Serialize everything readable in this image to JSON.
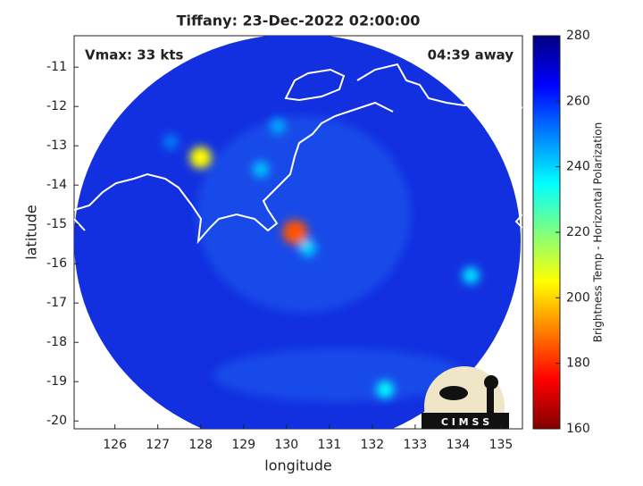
{
  "chart_data": {
    "type": "swath-map",
    "title": "Tiffany: 23-Dec-2022 02:00:00",
    "annotations": [
      "Vmax: 33 kts",
      "04:39 away"
    ],
    "x_label": "longitude",
    "y_label": "latitude",
    "xlim": [
      125.05,
      135.5
    ],
    "xticks": [
      126,
      127,
      128,
      129,
      130,
      131,
      132,
      133,
      134,
      135
    ],
    "ylim": [
      -20.2,
      -10.2
    ],
    "yticks": [
      -11,
      -12,
      -13,
      -14,
      -15,
      -16,
      -17,
      -18,
      -19,
      -20
    ],
    "colorbar_label": "Brightness Temp - Horizontal Polarization",
    "clim": [
      160,
      280
    ],
    "cticks": [
      160,
      180,
      200,
      220,
      240,
      260,
      280
    ],
    "colormap": "jet-reversed",
    "features": [
      {
        "x": 130.2,
        "y": -15.2,
        "value": 185
      },
      {
        "x": 128.0,
        "y": -13.3,
        "value": 205
      },
      {
        "x": 130.5,
        "y": -15.6,
        "value": 240
      },
      {
        "x": 129.8,
        "y": -12.5,
        "value": 245
      },
      {
        "x": 132.3,
        "y": -19.2,
        "value": 235
      },
      {
        "x": 134.3,
        "y": -16.3,
        "value": 238
      },
      {
        "x": 129.4,
        "y": -13.6,
        "value": 242
      },
      {
        "x": 127.3,
        "y": -12.9,
        "value": 250
      }
    ],
    "logo_text": "C I M S S"
  }
}
